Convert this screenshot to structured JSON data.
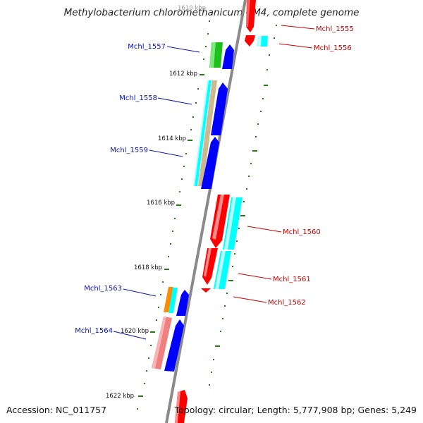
{
  "title": "Methylobacterium chloromethanicum CM4, complete genome",
  "accession": "Accession: NC_011757",
  "summary": "Topology: circular; Length: 5,777,908 bp; Genes: 5,249",
  "colors": {
    "backbone": "#8a8a8a",
    "tick": "#2a7a1a",
    "plus_label": "#0a12b0",
    "minus_label": "#c80000"
  },
  "scale_labels": [
    "1610 kbp",
    "1612 kbp",
    "1614 kbp",
    "1616 kbp",
    "1618 kbp",
    "1620 kbp",
    "1622 kbp"
  ],
  "genes_plus": [
    {
      "name": "Mchl_1557"
    },
    {
      "name": "Mchl_1558"
    },
    {
      "name": "Mchl_1559"
    },
    {
      "name": "Mchl_1563"
    },
    {
      "name": "Mchl_1564"
    }
  ],
  "genes_minus": [
    {
      "name": "Mchl_1555"
    },
    {
      "name": "Mchl_1556"
    },
    {
      "name": "Mchl_1560"
    },
    {
      "name": "Mchl_1561"
    },
    {
      "name": "Mchl_1562"
    }
  ]
}
